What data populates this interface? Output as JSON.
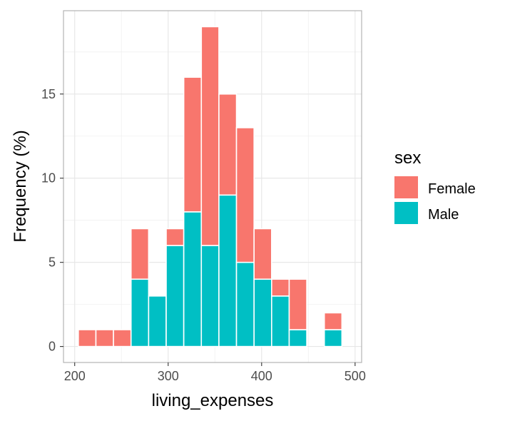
{
  "chart_data": {
    "type": "bar",
    "stacked": true,
    "xlabel": "living_expenses",
    "ylabel": "Frequency (%)",
    "xlim": [
      188,
      507
    ],
    "ylim": [
      -0.95,
      19.95
    ],
    "x_ticks": [
      200,
      300,
      400,
      500
    ],
    "y_ticks": [
      0,
      5,
      10,
      15
    ],
    "grid": true,
    "legend": {
      "title": "sex",
      "position": "right"
    },
    "bin_width": 18.8,
    "bin_starts": [
      203.9,
      222.7,
      241.5,
      260.3,
      279.1,
      297.9,
      316.7,
      335.5,
      354.3,
      373.1,
      391.9,
      410.7,
      429.5,
      448.3,
      467.1
    ],
    "series": [
      {
        "name": "Male",
        "color": "#00BFC4",
        "values": [
          0,
          0,
          0,
          4,
          3,
          6,
          8,
          6,
          9,
          5,
          4,
          3,
          1,
          0,
          1
        ]
      },
      {
        "name": "Female",
        "color": "#F8766D",
        "values": [
          1,
          1,
          1,
          3,
          0,
          1,
          8,
          13,
          6,
          8,
          3,
          1,
          3,
          0,
          1
        ]
      }
    ]
  }
}
